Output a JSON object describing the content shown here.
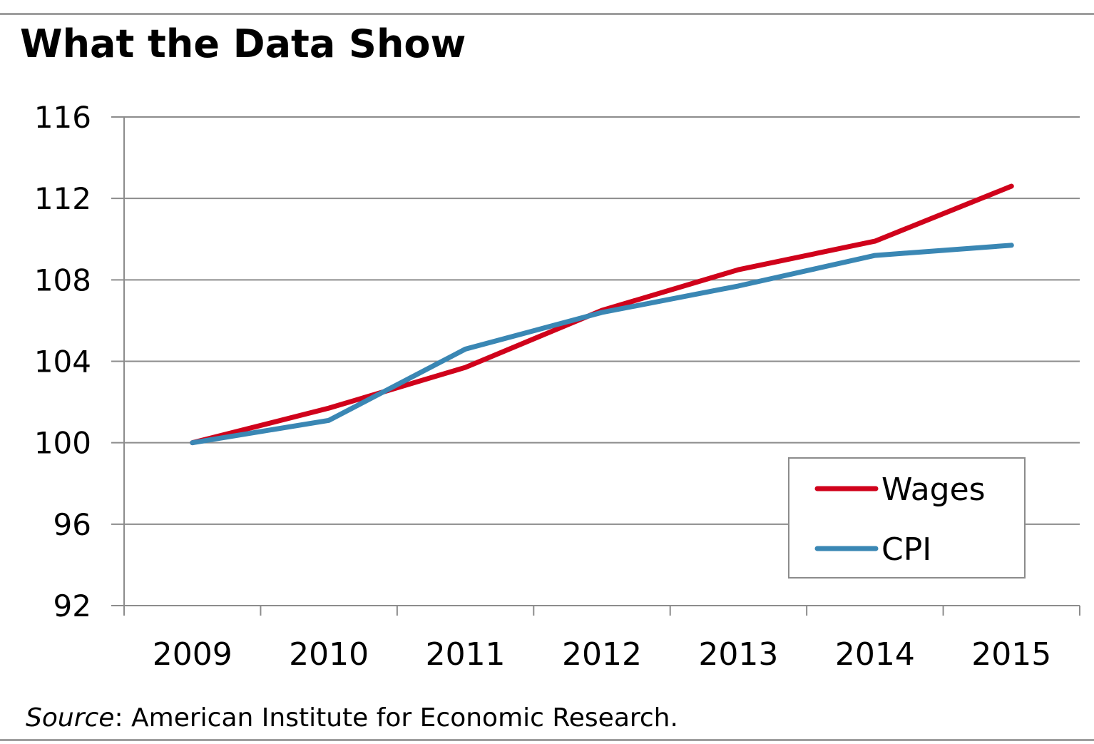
{
  "page": {
    "title": "What the Data Show",
    "source_label": "Source",
    "source_text": ": American Institute for Economic Research."
  },
  "chart_data": {
    "type": "line",
    "title": "What the Data Show",
    "xlabel": "",
    "ylabel": "",
    "categories": [
      "2009",
      "2010",
      "2011",
      "2012",
      "2013",
      "2014",
      "2015"
    ],
    "ylim": [
      92,
      116
    ],
    "yticks": [
      92,
      96,
      100,
      104,
      108,
      112,
      116
    ],
    "grid": true,
    "legend_position": "bottom-right",
    "series": [
      {
        "name": "Wages",
        "color": "#d0021b",
        "values": [
          100,
          101.7,
          103.7,
          106.5,
          108.5,
          109.9,
          112.6
        ]
      },
      {
        "name": "CPI",
        "color": "#3a87b4",
        "values": [
          100,
          101.1,
          104.6,
          106.4,
          107.7,
          109.2,
          109.7
        ]
      }
    ]
  }
}
